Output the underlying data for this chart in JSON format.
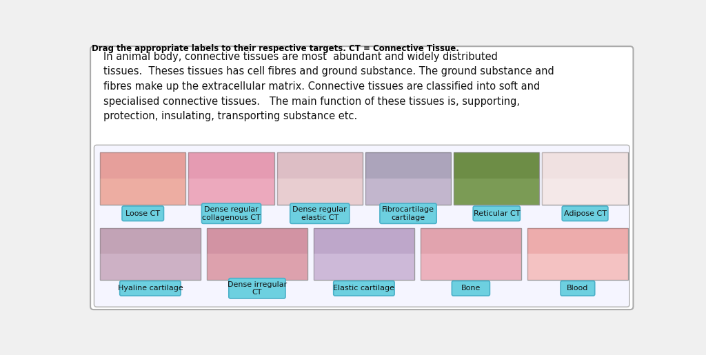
{
  "title": "Drag the appropriate labels to their respective targets. CT = Connective Tissue.",
  "title_fontsize": 8.5,
  "background_color": "#f0f0f0",
  "text_block": "In animal body, connective tissues are most  abundant and widely distributed\ntissues.  Theses tissues has cell fibres and ground substance. The ground substance and\nfibres make up the extracellular matrix. Connective tissues are classified into soft and\nspecialised connective tissues.   The main function of these tissues is, supporting,\nprotection, insulating, transporting substance etc.",
  "text_fontsize": 10.5,
  "label_bg_color": "#6dd0e0",
  "label_fontsize": 8,
  "row1_labels": [
    "Loose CT",
    "Dense regular\ncollagenous CT",
    "Dense regular\nelastic CT",
    "Fibrocartilage\ncartilage",
    "Reticular CT",
    "Adipose CT"
  ],
  "row2_labels": [
    "Hyaline cartilage",
    "Dense irregular\nCT",
    "Elastic cartilage",
    "Bone",
    "Blood"
  ],
  "inner_box_bg": "#e8f0f8",
  "img_border": "#999999",
  "label_border": "#4ab0c8"
}
